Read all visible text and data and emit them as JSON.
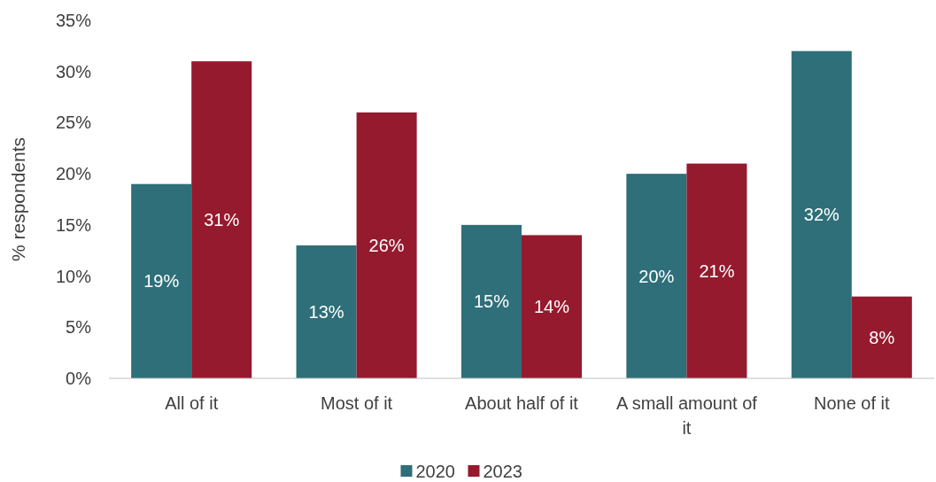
{
  "chart_data": {
    "type": "bar",
    "ylabel": "% respondents",
    "categories": [
      "All of it",
      "Most of it",
      "About half of it",
      "A small amount of it",
      "None of it"
    ],
    "series": [
      {
        "name": "2020",
        "color": "#2e6f79",
        "values": [
          19,
          13,
          15,
          20,
          32
        ],
        "value_labels": [
          "19%",
          "13%",
          "15%",
          "20%",
          "32%"
        ]
      },
      {
        "name": "2023",
        "color": "#951a2e",
        "values": [
          31,
          26,
          14,
          21,
          8
        ],
        "value_labels": [
          "31%",
          "26%",
          "14%",
          "21%",
          "8%"
        ]
      }
    ],
    "ylim": [
      0,
      35
    ],
    "yticks": [
      {
        "value": 0,
        "label": "0%"
      },
      {
        "value": 5,
        "label": "5%"
      },
      {
        "value": 10,
        "label": "10%"
      },
      {
        "value": 15,
        "label": "15%"
      },
      {
        "value": 20,
        "label": "20%"
      },
      {
        "value": 25,
        "label": "25%"
      },
      {
        "value": 30,
        "label": "30%"
      },
      {
        "value": 35,
        "label": "35%"
      }
    ],
    "legend": "bottom"
  }
}
